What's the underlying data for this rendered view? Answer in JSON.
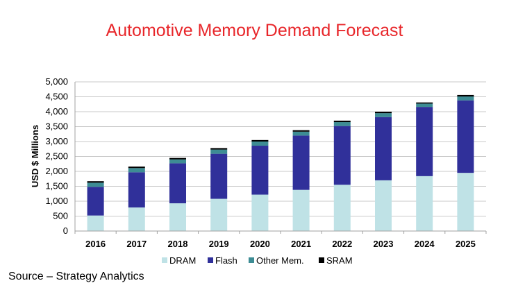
{
  "chart_data": {
    "type": "bar",
    "stacked": true,
    "title": "Automotive Memory Demand Forecast",
    "ylabel": "USD $ Millions",
    "xlabel": "",
    "ylim": [
      0,
      5000
    ],
    "yticks": [
      "0",
      "500",
      "1,000",
      "1,500",
      "2,000",
      "2,500",
      "3,000",
      "3,500",
      "4,000",
      "4,500",
      "5,000"
    ],
    "ytick_values": [
      0,
      500,
      1000,
      1500,
      2000,
      2500,
      3000,
      3500,
      4000,
      4500,
      5000
    ],
    "grid": true,
    "legend_position": "bottom",
    "categories": [
      "2016",
      "2017",
      "2018",
      "2019",
      "2020",
      "2021",
      "2022",
      "2023",
      "2024",
      "2025"
    ],
    "series": [
      {
        "name": "DRAM",
        "color": "#bfe2e6",
        "values": [
          520,
          790,
          930,
          1080,
          1220,
          1380,
          1550,
          1700,
          1840,
          1950
        ]
      },
      {
        "name": "Flash",
        "color": "#30309a",
        "values": [
          960,
          1180,
          1340,
          1510,
          1640,
          1820,
          1970,
          2120,
          2320,
          2430
        ]
      },
      {
        "name": "Other Mem.",
        "color": "#3d8c94",
        "values": [
          140,
          140,
          130,
          140,
          140,
          130,
          130,
          130,
          110,
          130
        ]
      },
      {
        "name": "SRAM",
        "color": "#000000",
        "values": [
          50,
          50,
          50,
          50,
          50,
          50,
          50,
          50,
          40,
          50
        ]
      }
    ]
  },
  "source": "Source – Strategy Analytics"
}
